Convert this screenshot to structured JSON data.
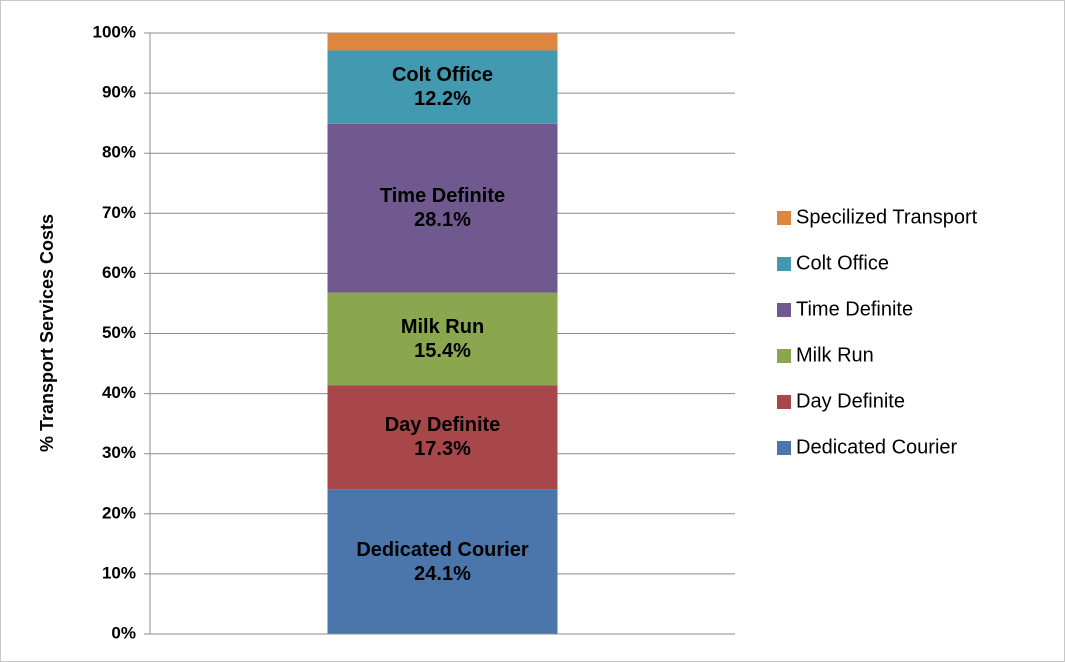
{
  "chart_data": {
    "type": "stacked_bar",
    "y_label": "% Transport Services Costs",
    "categories": [
      null
    ],
    "series": [
      {
        "name": "Dedicated Courier",
        "color": "#4a76ab",
        "values": [
          24.1
        ],
        "value_labels": [
          "24.1%"
        ]
      },
      {
        "name": "Day Definite",
        "color": "#a8474a",
        "values": [
          17.3
        ],
        "value_labels": [
          "17.3%"
        ]
      },
      {
        "name": "Milk Run",
        "color": "#8aa64e",
        "values": [
          15.4
        ],
        "value_labels": [
          "15.4%"
        ]
      },
      {
        "name": "Time Definite",
        "color": "#70598f",
        "values": [
          28.1
        ],
        "value_labels": [
          "28.1%"
        ]
      },
      {
        "name": "Colt Office",
        "color": "#4299b0",
        "values": [
          12.2
        ],
        "value_labels": [
          "12.2%"
        ]
      },
      {
        "name": "Specilized Transport",
        "color": "#dd8640",
        "values": [
          2.9
        ]
      }
    ],
    "ylim": [
      0,
      100
    ],
    "yticks": [
      {
        "value": 0,
        "label": "0%"
      },
      {
        "value": 10,
        "label": "10%"
      },
      {
        "value": 20,
        "label": "20%"
      },
      {
        "value": 30,
        "label": "30%"
      },
      {
        "value": 40,
        "label": "40%"
      },
      {
        "value": 50,
        "label": "50%"
      },
      {
        "value": 60,
        "label": "60%"
      },
      {
        "value": 70,
        "label": "70%"
      },
      {
        "value": 80,
        "label": "80%"
      },
      {
        "value": 90,
        "label": "90%"
      },
      {
        "value": 100,
        "label": "100%"
      }
    ],
    "grid": true,
    "legend": "right"
  }
}
